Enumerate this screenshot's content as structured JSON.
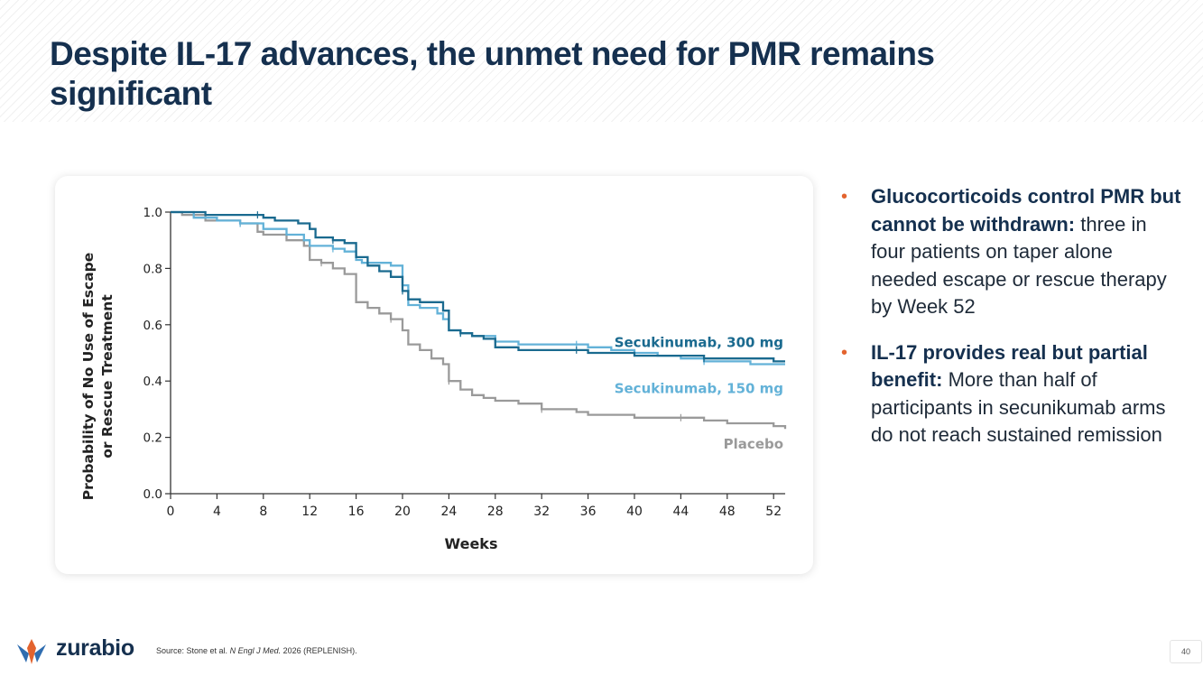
{
  "page": {
    "title": "Despite IL-17 advances, the unmet need for PMR remains significant",
    "page_number": "40"
  },
  "bullets": [
    {
      "bold": "Glucocorticoids control PMR but cannot be withdrawn:",
      "text": " three in four patients on taper alone needed escape or rescue therapy by Week 52"
    },
    {
      "bold": "IL-17 provides real but partial benefit:",
      "text": " More than half of participants in secunikumab arms do not reach sustained remission"
    }
  ],
  "footer": {
    "logo_text": "zurabio",
    "source_prefix": "Source: Stone et al. ",
    "source_journal": "N Engl J Med.",
    "source_suffix": " 2026 (REPLENISH)."
  },
  "colors": {
    "title": "#15304f",
    "bullet_marker": "#e3632e",
    "secukinumab_300": "#1a6a8f",
    "secukinumab_150": "#63b2d8",
    "placebo": "#9a9a9a"
  },
  "chart_data": {
    "type": "line",
    "step": true,
    "xlabel": "Weeks",
    "ylabel": "Probability of No Use of Escape or Rescue Treatment",
    "xlim": [
      0,
      53
    ],
    "ylim": [
      0,
      1.0
    ],
    "x_ticks": [
      0,
      4,
      8,
      12,
      16,
      20,
      24,
      28,
      32,
      36,
      40,
      44,
      48,
      52
    ],
    "y_ticks": [
      0.0,
      0.2,
      0.4,
      0.6,
      0.8,
      1.0
    ],
    "y_tick_labels": [
      "0.0",
      "0.2",
      "0.4",
      "0.6",
      "0.8",
      "1.0"
    ],
    "grid": false,
    "series": [
      {
        "name": "Placebo",
        "color": "#9a9a9a",
        "points": [
          [
            0,
            1.0
          ],
          [
            1,
            0.99
          ],
          [
            3,
            0.97
          ],
          [
            6,
            0.96
          ],
          [
            7.5,
            0.93
          ],
          [
            8,
            0.92
          ],
          [
            10,
            0.9
          ],
          [
            11.5,
            0.88
          ],
          [
            12,
            0.83
          ],
          [
            13,
            0.82
          ],
          [
            14,
            0.8
          ],
          [
            15,
            0.78
          ],
          [
            16,
            0.68
          ],
          [
            17,
            0.66
          ],
          [
            18,
            0.64
          ],
          [
            19,
            0.62
          ],
          [
            20,
            0.58
          ],
          [
            20.5,
            0.53
          ],
          [
            21.5,
            0.51
          ],
          [
            22.5,
            0.48
          ],
          [
            23.5,
            0.46
          ],
          [
            24,
            0.4
          ],
          [
            25,
            0.37
          ],
          [
            26,
            0.35
          ],
          [
            27,
            0.34
          ],
          [
            28,
            0.33
          ],
          [
            30,
            0.32
          ],
          [
            32,
            0.3
          ],
          [
            35,
            0.29
          ],
          [
            36,
            0.28
          ],
          [
            38,
            0.28
          ],
          [
            40,
            0.27
          ],
          [
            42,
            0.27
          ],
          [
            44,
            0.27
          ],
          [
            46,
            0.26
          ],
          [
            48,
            0.25
          ],
          [
            50,
            0.25
          ],
          [
            52,
            0.24
          ],
          [
            53,
            0.23
          ]
        ]
      },
      {
        "name": "Secukinumab, 150 mg",
        "color": "#63b2d8",
        "points": [
          [
            0,
            1.0
          ],
          [
            2,
            0.98
          ],
          [
            4,
            0.97
          ],
          [
            6,
            0.96
          ],
          [
            7.5,
            0.96
          ],
          [
            8,
            0.94
          ],
          [
            10,
            0.92
          ],
          [
            11.5,
            0.9
          ],
          [
            12,
            0.88
          ],
          [
            14,
            0.87
          ],
          [
            15,
            0.86
          ],
          [
            16,
            0.83
          ],
          [
            16.5,
            0.82
          ],
          [
            18,
            0.82
          ],
          [
            19,
            0.81
          ],
          [
            20,
            0.74
          ],
          [
            20.5,
            0.67
          ],
          [
            21.5,
            0.66
          ],
          [
            23,
            0.64
          ],
          [
            23.5,
            0.62
          ],
          [
            24,
            0.58
          ],
          [
            25,
            0.57
          ],
          [
            26,
            0.56
          ],
          [
            27,
            0.56
          ],
          [
            28,
            0.54
          ],
          [
            30,
            0.53
          ],
          [
            32,
            0.53
          ],
          [
            35,
            0.53
          ],
          [
            36,
            0.52
          ],
          [
            38,
            0.51
          ],
          [
            40,
            0.5
          ],
          [
            42,
            0.49
          ],
          [
            44,
            0.48
          ],
          [
            46,
            0.47
          ],
          [
            48,
            0.47
          ],
          [
            50,
            0.46
          ],
          [
            52,
            0.46
          ],
          [
            53,
            0.46
          ]
        ]
      },
      {
        "name": "Secukinumab, 300 mg",
        "color": "#1a6a8f",
        "points": [
          [
            0,
            1.0
          ],
          [
            3,
            0.99
          ],
          [
            6,
            0.99
          ],
          [
            7.5,
            0.99
          ],
          [
            8,
            0.98
          ],
          [
            9,
            0.97
          ],
          [
            11,
            0.96
          ],
          [
            12,
            0.94
          ],
          [
            12.5,
            0.91
          ],
          [
            14,
            0.9
          ],
          [
            15,
            0.89
          ],
          [
            16,
            0.84
          ],
          [
            17,
            0.81
          ],
          [
            18,
            0.79
          ],
          [
            19,
            0.77
          ],
          [
            20,
            0.72
          ],
          [
            20.5,
            0.69
          ],
          [
            21.5,
            0.68
          ],
          [
            23,
            0.68
          ],
          [
            23.5,
            0.65
          ],
          [
            24,
            0.58
          ],
          [
            25,
            0.57
          ],
          [
            26,
            0.56
          ],
          [
            27,
            0.55
          ],
          [
            28,
            0.52
          ],
          [
            30,
            0.51
          ],
          [
            32,
            0.51
          ],
          [
            35,
            0.51
          ],
          [
            36,
            0.5
          ],
          [
            38,
            0.5
          ],
          [
            40,
            0.49
          ],
          [
            42,
            0.49
          ],
          [
            44,
            0.49
          ],
          [
            46,
            0.48
          ],
          [
            48,
            0.48
          ],
          [
            50,
            0.48
          ],
          [
            52,
            0.47
          ],
          [
            53,
            0.47
          ]
        ]
      }
    ]
  }
}
